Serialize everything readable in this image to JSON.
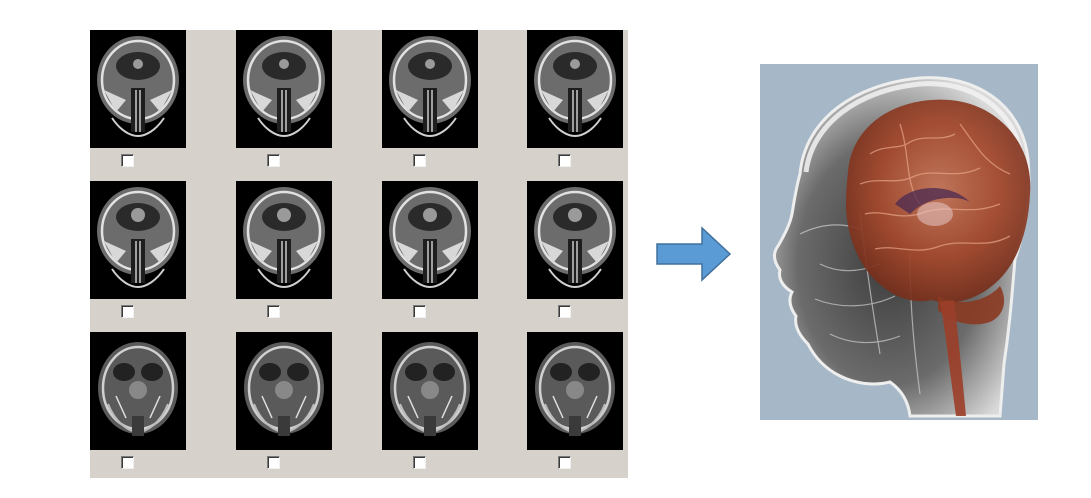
{
  "slice_grid": {
    "rows": 3,
    "columns": 4,
    "slice_rows": [
      {
        "name": "row-1",
        "style": "upper"
      },
      {
        "name": "row-2",
        "style": "middle"
      },
      {
        "name": "row-3",
        "style": "lower"
      }
    ],
    "checkbox_state": [
      [
        false,
        false,
        false,
        false
      ],
      [
        false,
        false,
        false,
        false
      ],
      [
        false,
        false,
        false,
        false
      ]
    ]
  },
  "colors": {
    "panel_background": "#d6d2cb",
    "slice_background": "#000000",
    "arrow": "#5b9bd5",
    "arrow_border": "#41719c",
    "render_background": "#a6b8c7",
    "brain_tissue": "#a5482c"
  },
  "icons": {
    "arrow": "arrow-right-icon",
    "checkbox": "checkbox-unchecked"
  }
}
